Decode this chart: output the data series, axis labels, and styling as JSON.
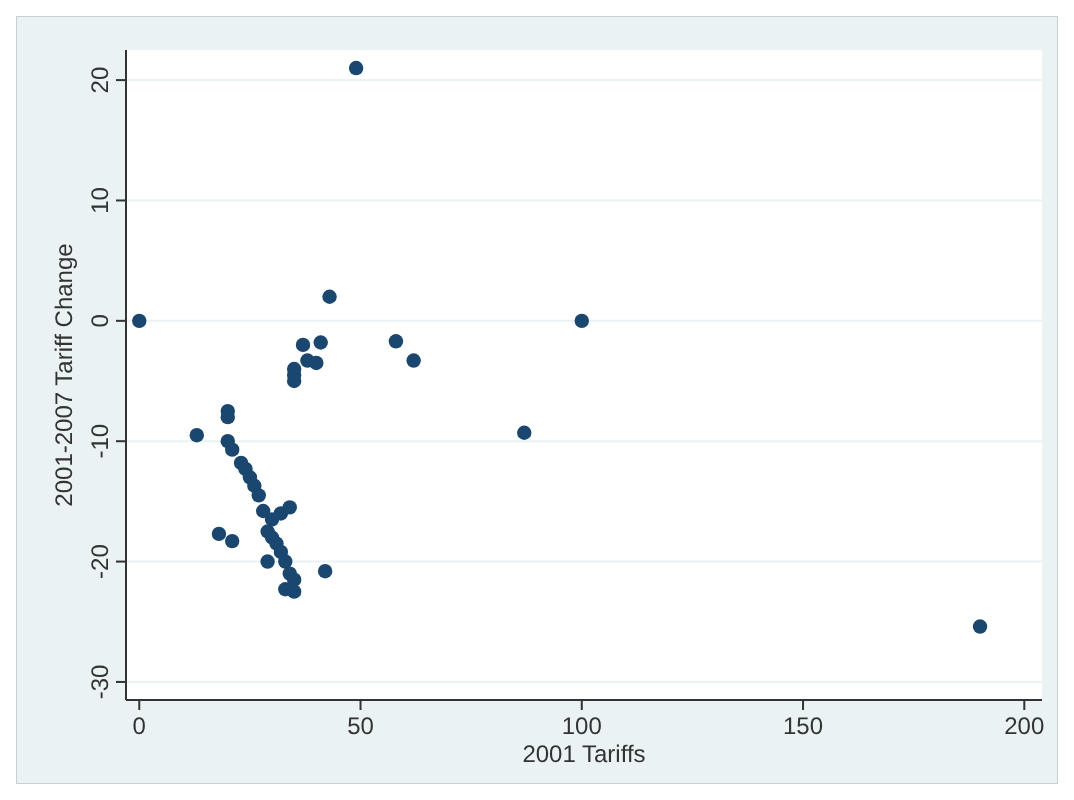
{
  "chart_data": {
    "type": "scatter",
    "xlabel": "2001 Tariffs",
    "ylabel": "2001-2007 Tariff Change",
    "xlim": [
      -3,
      204
    ],
    "ylim": [
      -31.5,
      22.5
    ],
    "xticks": [
      0,
      50,
      100,
      150,
      200
    ],
    "yticks": [
      -30,
      -20,
      -10,
      0,
      10,
      20
    ],
    "grid": "y",
    "marker": "circle",
    "series": [
      {
        "color": "#1a476f",
        "x": [
          0,
          49,
          43,
          100,
          37,
          41,
          58,
          62,
          38,
          40,
          35,
          35,
          35,
          87,
          13,
          20,
          20,
          20,
          21,
          23,
          24,
          25,
          26,
          27,
          28,
          30,
          32,
          34,
          29,
          30,
          31,
          32,
          33,
          29,
          18,
          21,
          34,
          35,
          33,
          35,
          42,
          190
        ],
        "values": [
          0,
          21,
          2,
          0,
          -2,
          -1.8,
          -1.7,
          -3.3,
          -3.3,
          -3.5,
          -4,
          -4.5,
          -5,
          -9.3,
          -9.5,
          -7.5,
          -8,
          -10,
          -10.7,
          -11.8,
          -12.3,
          -13,
          -13.7,
          -14.5,
          -15.8,
          -16.5,
          -16,
          -15.5,
          -17.5,
          -18,
          -18.5,
          -19.2,
          -20,
          -20,
          -17.7,
          -18.3,
          -21,
          -21.5,
          -22.3,
          -22.5,
          -20.8,
          -25.4
        ]
      }
    ]
  }
}
